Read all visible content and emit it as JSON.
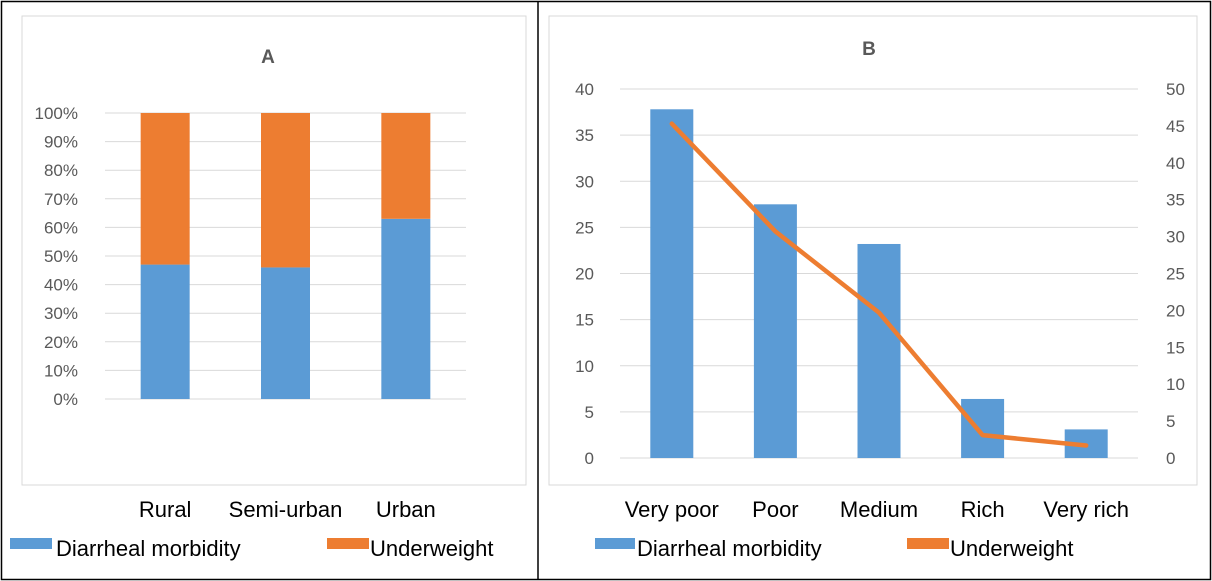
{
  "chart_data": [
    {
      "type": "bar",
      "stacked": true,
      "percent": true,
      "title": "A",
      "categories": [
        "Rural",
        "Semi-urban",
        "Urban"
      ],
      "y_ticks": [
        "0%",
        "10%",
        "20%",
        "30%",
        "40%",
        "50%",
        "60%",
        "70%",
        "80%",
        "90%",
        "100%"
      ],
      "ylim": [
        0,
        100
      ],
      "series": [
        {
          "name": "Diarrheal morbidity",
          "values": [
            47,
            46,
            63
          ]
        },
        {
          "name": "Underweight",
          "values": [
            53,
            54,
            37
          ]
        }
      ],
      "grid": true,
      "legend": "bottom"
    },
    {
      "type": "bar",
      "combo": "bar+line",
      "title": "B",
      "categories": [
        "Very poor",
        "Poor",
        "Medium",
        "Rich",
        "Very rich"
      ],
      "y_left_ticks": [
        "0",
        "5",
        "10",
        "15",
        "20",
        "25",
        "30",
        "35",
        "40"
      ],
      "y_right_ticks": [
        "0",
        "5",
        "10",
        "15",
        "20",
        "25",
        "30",
        "35",
        "40",
        "45",
        "50"
      ],
      "ylim_left": [
        0,
        40
      ],
      "ylim_right": [
        0,
        50
      ],
      "series": [
        {
          "name": "Diarrheal morbidity",
          "type": "bar",
          "axis": "left",
          "values": [
            37.8,
            27.5,
            23.2,
            6.4,
            3.1
          ]
        },
        {
          "name": "Underweight",
          "type": "line",
          "axis": "right",
          "values": [
            45.3,
            30.7,
            19.7,
            3.1,
            1.7
          ]
        }
      ],
      "grid": true,
      "legend": "bottom"
    }
  ],
  "colors": {
    "blue": "#5b9bd5",
    "orange": "#ed7d31",
    "grid": "#d9d9d9",
    "frame": "#000000",
    "plot_border": "#d9d9d9",
    "tick_text": "#595959",
    "title_text": "#595959",
    "label_text": "#000000"
  }
}
